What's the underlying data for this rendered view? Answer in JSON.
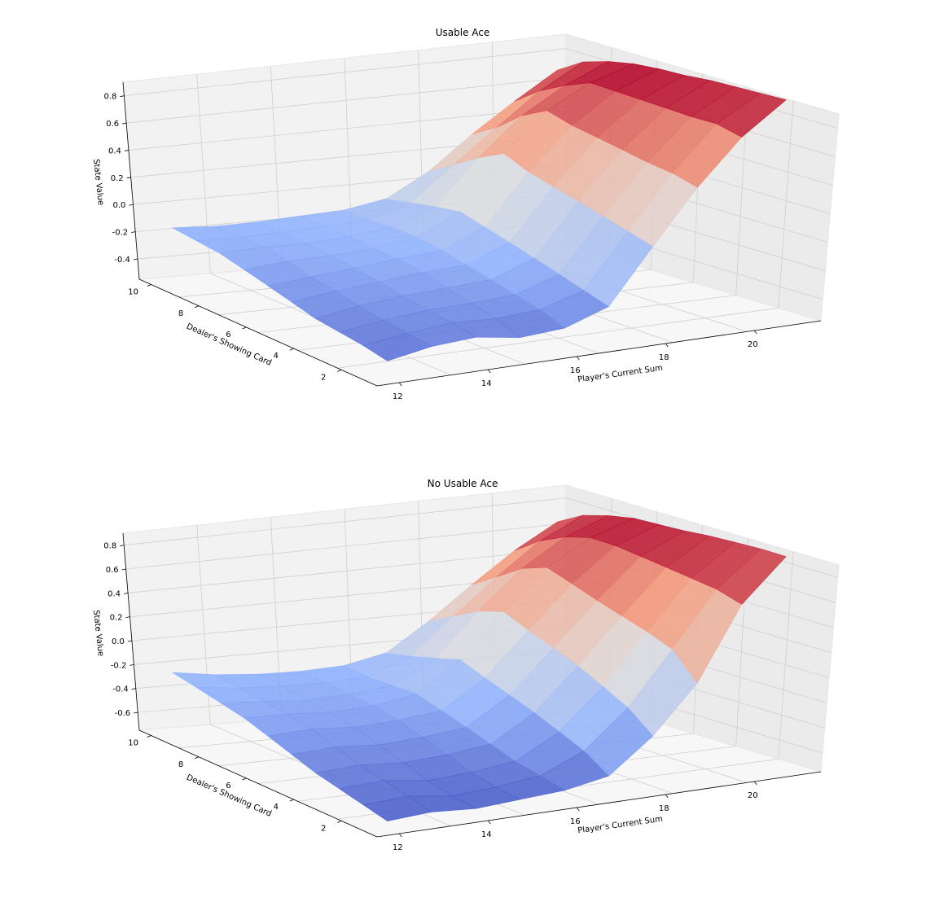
{
  "chart_data": [
    {
      "type": "surface",
      "title": "Usable Ace",
      "xlabel": "Player's Current Sum",
      "ylabel": "Dealer's Showing Card",
      "zlabel": "State Value",
      "x": [
        12,
        13,
        14,
        15,
        16,
        17,
        18,
        19,
        20,
        21
      ],
      "y": [
        1,
        2,
        3,
        4,
        5,
        6,
        7,
        8,
        9,
        10
      ],
      "x_ticks": [
        "12",
        "14",
        "16",
        "18",
        "20"
      ],
      "y_ticks": [
        "2",
        "4",
        "6",
        "8",
        "10"
      ],
      "z_ticks": [
        "-0.4",
        "-0.2",
        "0.0",
        "0.2",
        "0.4",
        "0.6",
        "0.8"
      ],
      "zlim": [
        -0.55,
        0.9
      ],
      "colormap": "coolwarm",
      "z": [
        [
          -0.45,
          -0.4,
          -0.38,
          -0.42,
          -0.4,
          -0.3,
          0.05,
          0.4,
          0.7,
          0.92
        ],
        [
          -0.42,
          -0.38,
          -0.35,
          -0.36,
          -0.34,
          -0.25,
          0.1,
          0.45,
          0.75,
          0.93
        ],
        [
          -0.4,
          -0.36,
          -0.33,
          -0.32,
          -0.3,
          -0.2,
          0.15,
          0.48,
          0.76,
          0.94
        ],
        [
          -0.38,
          -0.33,
          -0.3,
          -0.28,
          -0.26,
          -0.15,
          0.2,
          0.52,
          0.78,
          0.95
        ],
        [
          -0.34,
          -0.3,
          -0.27,
          -0.24,
          -0.22,
          -0.1,
          0.25,
          0.56,
          0.8,
          0.95
        ],
        [
          -0.3,
          -0.27,
          -0.24,
          -0.21,
          -0.18,
          -0.05,
          0.3,
          0.6,
          0.82,
          0.96
        ],
        [
          -0.26,
          -0.23,
          -0.22,
          -0.2,
          -0.15,
          0.0,
          0.38,
          0.66,
          0.84,
          0.96
        ],
        [
          -0.22,
          -0.2,
          -0.2,
          -0.18,
          -0.14,
          -0.02,
          0.3,
          0.58,
          0.78,
          0.94
        ],
        [
          -0.2,
          -0.2,
          -0.19,
          -0.17,
          -0.15,
          -0.05,
          0.2,
          0.45,
          0.7,
          0.9
        ],
        [
          -0.18,
          -0.19,
          -0.18,
          -0.16,
          -0.14,
          -0.08,
          0.1,
          0.35,
          0.58,
          0.8
        ]
      ]
    },
    {
      "type": "surface",
      "title": "No Usable Ace",
      "xlabel": "Player's Current Sum",
      "ylabel": "Dealer's Showing Card",
      "zlabel": "State Value",
      "x": [
        12,
        13,
        14,
        15,
        16,
        17,
        18,
        19,
        20,
        21
      ],
      "y": [
        1,
        2,
        3,
        4,
        5,
        6,
        7,
        8,
        9,
        10
      ],
      "x_ticks": [
        "12",
        "14",
        "16",
        "18",
        "20"
      ],
      "y_ticks": [
        "2",
        "4",
        "6",
        "8",
        "10"
      ],
      "z_ticks": [
        "-0.6",
        "-0.4",
        "-0.2",
        "0.0",
        "0.2",
        "0.4",
        "0.6",
        "0.8"
      ],
      "zlim": [
        -0.75,
        0.9
      ],
      "colormap": "coolwarm",
      "z": [
        [
          -0.7,
          -0.68,
          -0.7,
          -0.68,
          -0.66,
          -0.6,
          -0.35,
          0.0,
          0.55,
          0.88
        ],
        [
          -0.66,
          -0.64,
          -0.68,
          -0.66,
          -0.62,
          -0.48,
          -0.2,
          0.2,
          0.62,
          0.9
        ],
        [
          -0.62,
          -0.6,
          -0.64,
          -0.62,
          -0.58,
          -0.4,
          -0.1,
          0.28,
          0.66,
          0.91
        ],
        [
          -0.58,
          -0.56,
          -0.58,
          -0.56,
          -0.52,
          -0.32,
          0.0,
          0.35,
          0.7,
          0.92
        ],
        [
          -0.52,
          -0.5,
          -0.52,
          -0.5,
          -0.46,
          -0.25,
          0.08,
          0.42,
          0.74,
          0.92
        ],
        [
          -0.46,
          -0.44,
          -0.46,
          -0.44,
          -0.4,
          -0.18,
          0.16,
          0.5,
          0.78,
          0.93
        ],
        [
          -0.4,
          -0.4,
          -0.42,
          -0.4,
          -0.34,
          -0.1,
          0.25,
          0.58,
          0.8,
          0.94
        ],
        [
          -0.36,
          -0.38,
          -0.4,
          -0.38,
          -0.34,
          -0.15,
          0.2,
          0.52,
          0.76,
          0.92
        ],
        [
          -0.32,
          -0.35,
          -0.36,
          -0.36,
          -0.34,
          -0.2,
          0.1,
          0.4,
          0.68,
          0.88
        ],
        [
          -0.28,
          -0.32,
          -0.34,
          -0.34,
          -0.32,
          -0.24,
          0.0,
          0.28,
          0.55,
          0.78
        ]
      ]
    }
  ]
}
